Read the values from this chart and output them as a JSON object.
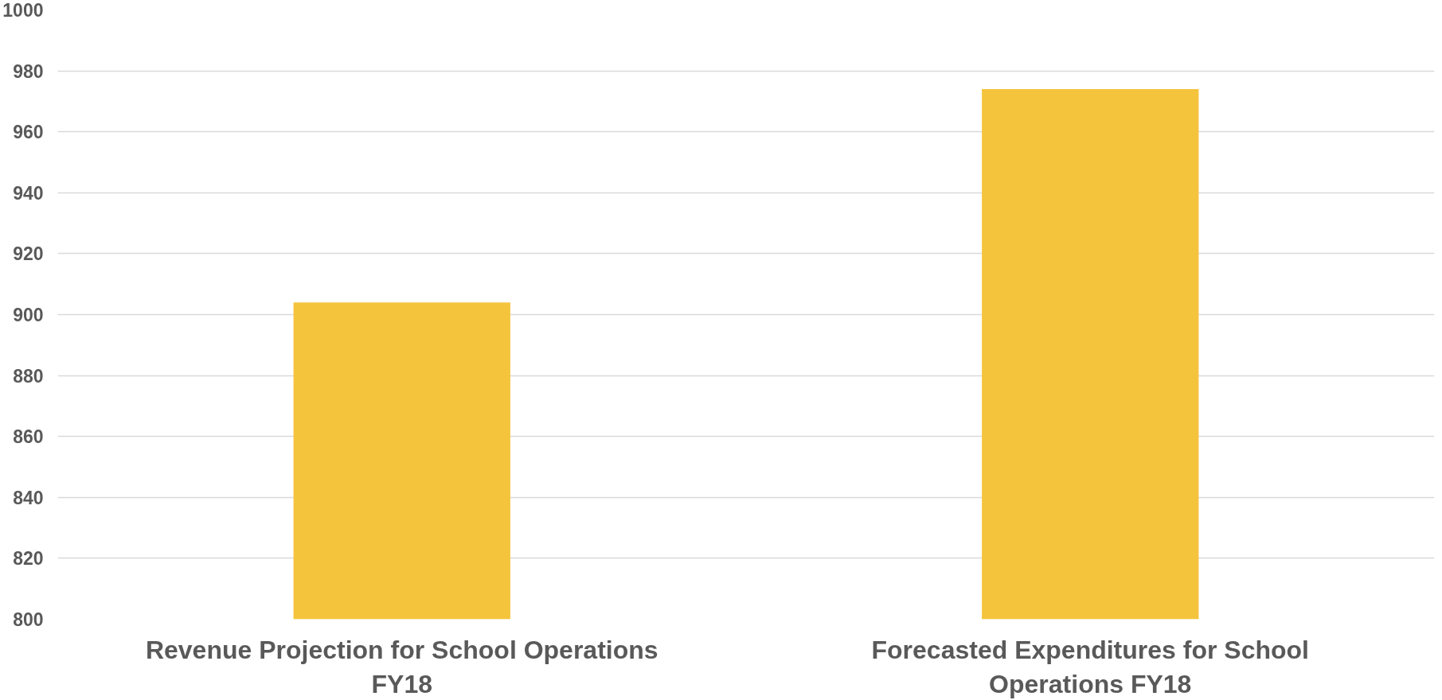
{
  "chart_data": {
    "type": "bar",
    "categories": [
      "Revenue Projection for School Operations FY18",
      "Forecasted Expenditures for School Operations FY18"
    ],
    "values": [
      904,
      974
    ],
    "color": "#f4c43c",
    "ylim": [
      800,
      1000
    ],
    "yticks": [
      800,
      820,
      840,
      860,
      880,
      900,
      920,
      940,
      960,
      980,
      1000
    ],
    "grid": "y"
  }
}
